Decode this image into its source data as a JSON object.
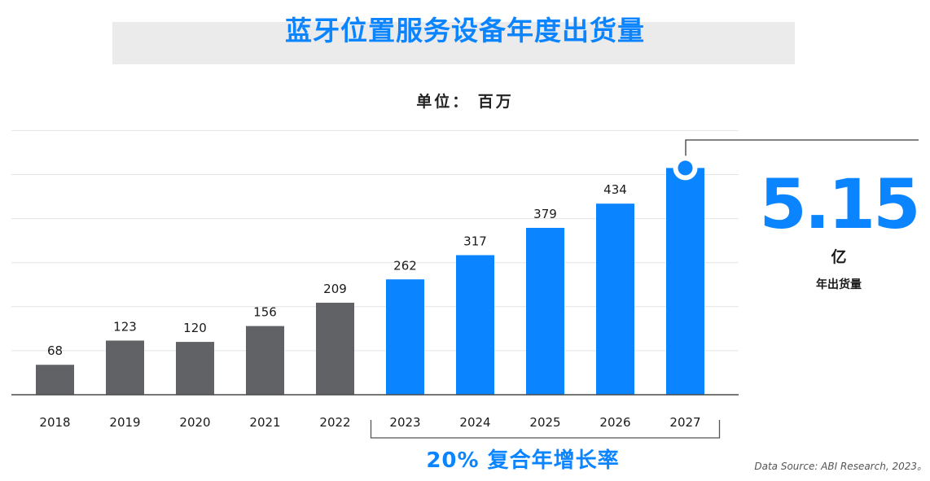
{
  "title": "蓝牙位置服务设备年度出货量",
  "unit_label": "单位： 百万",
  "chart_data": {
    "type": "bar",
    "title": "蓝牙位置服务设备年度出货量",
    "ylabel": "单位： 百万",
    "xlabel": "",
    "categories": [
      "2018",
      "2019",
      "2020",
      "2021",
      "2022",
      "2023",
      "2024",
      "2025",
      "2026",
      "2027"
    ],
    "values": [
      68,
      123,
      120,
      156,
      209,
      262,
      317,
      379,
      434,
      515
    ],
    "labels": [
      "68",
      "123",
      "120",
      "156",
      "209",
      "262",
      "317",
      "379",
      "434",
      ""
    ],
    "ylim": [
      0,
      600
    ],
    "grid": true,
    "highlight_from_index": 5,
    "highlight_end_index": 9,
    "colors": {
      "historical": "#616266",
      "forecast": "#0a84ff"
    }
  },
  "callout": {
    "value": "5.15",
    "unit": "亿",
    "label": "年出货量"
  },
  "cagr_label": "20% 复合年增长率",
  "source": "Data Source: ABI Research, 2023。"
}
